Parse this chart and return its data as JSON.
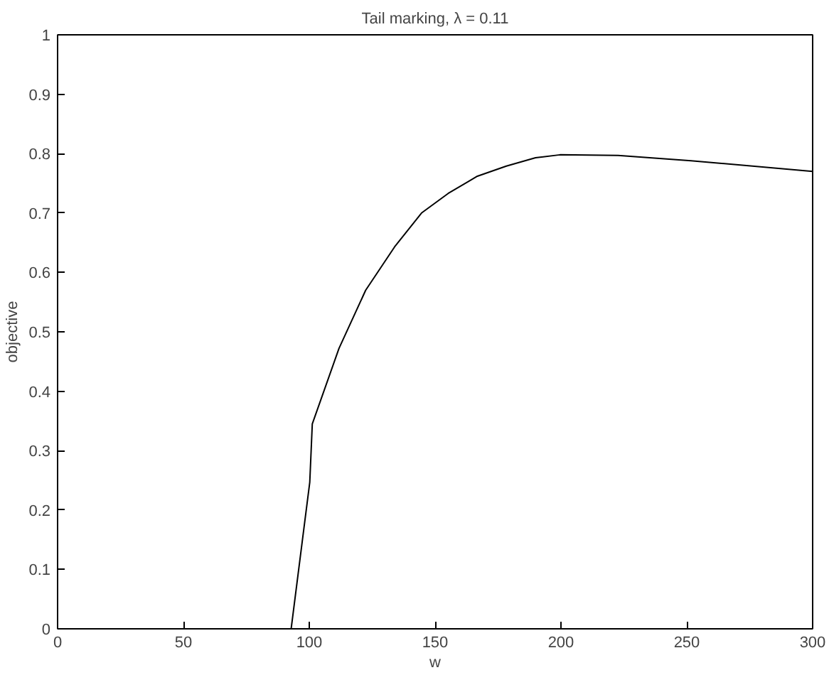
{
  "chart_data": {
    "type": "line",
    "title": "Tail marking, λ = 0.11",
    "xlabel": "w",
    "ylabel": "objective",
    "x": [
      92.8,
      100.2,
      101.2,
      111.8,
      122.4,
      133.9,
      144.6,
      155.2,
      166.8,
      178.3,
      189.9,
      199.6,
      222.7,
      251.7,
      300
    ],
    "series": [
      {
        "color": "#000000",
        "values": [
          0,
          0.247,
          0.345,
          0.472,
          0.57,
          0.643,
          0.7,
          0.733,
          0.762,
          0.779,
          0.793,
          0.798,
          0.797,
          0.788,
          0.77
        ]
      }
    ],
    "xlim": [
      0,
      300
    ],
    "ylim": [
      0,
      1
    ],
    "xticks": [
      0,
      50,
      100,
      150,
      200,
      250,
      300
    ],
    "yticks": [
      0,
      0.1,
      0.2,
      0.3,
      0.4,
      0.5,
      0.6,
      0.7,
      0.8,
      0.9,
      1
    ],
    "grid": false,
    "marker": "none",
    "line_style": "solid"
  }
}
